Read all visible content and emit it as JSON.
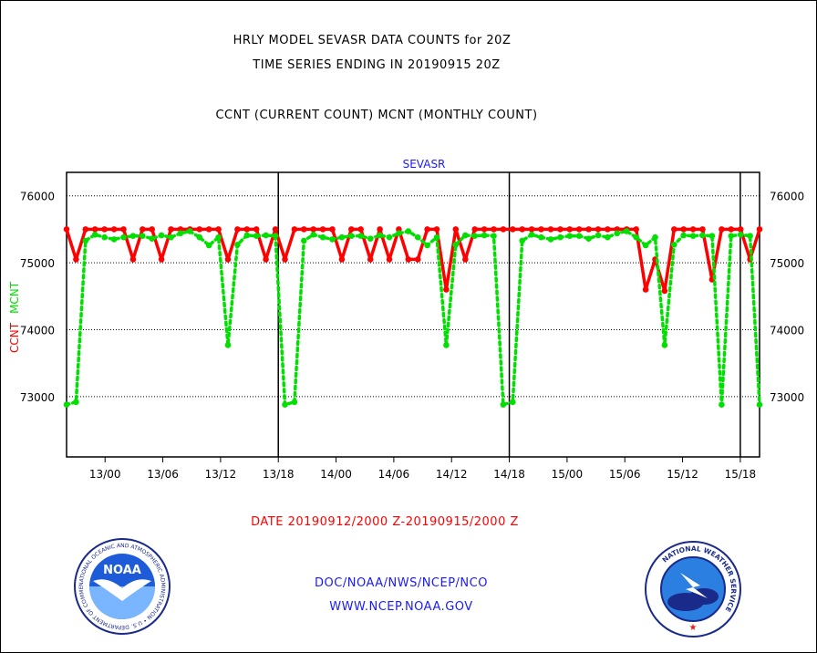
{
  "title_line1": "HRLY MODEL SEVASR DATA COUNTS for 20Z",
  "title_line2": "TIME SERIES ENDING IN 20190915 20Z",
  "subtitle": "CCNT (CURRENT COUNT) MCNT (MONTHLY COUNT)",
  "date_range": "DATE 20190912/2000 Z-20190915/2000 Z",
  "footer_org": "DOC/NOAA/NWS/NCEP/NCO",
  "footer_url": "WWW.NCEP.NOAA.GOV",
  "colors": {
    "ccnt": "#ff0000",
    "mcnt": "#00e000",
    "text_blue": "#1a1aff"
  },
  "logos": {
    "noaa_text": "NOAA",
    "noaa_ring": "NATIONAL OCEANIC AND ATMOSPHERIC ADMINISTRATION • U.S. DEPARTMENT OF COMMERCE •",
    "nws_ring": "NATIONAL WEATHER SERVICE"
  },
  "chart_data": {
    "type": "line",
    "title": "SEVASR",
    "ylabel_ccnt": "CCNT",
    "ylabel_mcnt": "MCNT",
    "ylim": [
      72100,
      76350
    ],
    "yticks": [
      73000,
      74000,
      75000,
      76000
    ],
    "ytick_labels": [
      "73000",
      "74000",
      "75000",
      "76000"
    ],
    "x_hours_range": [
      0,
      72
    ],
    "xtick_hours": [
      4,
      10,
      16,
      22,
      28,
      34,
      40,
      46,
      52,
      58,
      64,
      70
    ],
    "xtick_labels": [
      "13/00",
      "13/06",
      "13/12",
      "13/18",
      "14/00",
      "14/06",
      "14/12",
      "14/18",
      "15/00",
      "15/06",
      "15/12",
      "15/18"
    ],
    "day_boundaries": [
      22,
      46,
      70
    ],
    "grid": true,
    "series": [
      {
        "name": "CCNT",
        "color": "#ff0000",
        "style": "solid",
        "values": [
          75500,
          75050,
          75500,
          75500,
          75500,
          75500,
          75500,
          75050,
          75500,
          75500,
          75050,
          75500,
          75500,
          75500,
          75500,
          75500,
          75500,
          75050,
          75500,
          75500,
          75500,
          75050,
          75500,
          75050,
          75500,
          75500,
          75500,
          75500,
          75500,
          75050,
          75500,
          75500,
          75050,
          75500,
          75050,
          75500,
          75050,
          75050,
          75500,
          75500,
          74600,
          75500,
          75050,
          75500,
          75500,
          75500,
          75500,
          75500,
          75500,
          75500,
          75500,
          75500,
          75500,
          75500,
          75500,
          75500,
          75500,
          75500,
          75500,
          75500,
          75500,
          74600,
          75050,
          74580,
          75500,
          75500,
          75500,
          75500,
          74750,
          75500,
          75500,
          75500,
          75050,
          75500
        ]
      },
      {
        "name": "MCNT",
        "color": "#00e000",
        "style": "dotted",
        "values": [
          72880,
          72920,
          75330,
          75420,
          75380,
          75350,
          75380,
          75400,
          75400,
          75360,
          75410,
          75380,
          75440,
          75470,
          75380,
          75260,
          75380,
          73770,
          75270,
          75410,
          75400,
          75410,
          75400,
          72880,
          72920,
          75330,
          75420,
          75380,
          75350,
          75380,
          75400,
          75400,
          75360,
          75410,
          75380,
          75440,
          75470,
          75380,
          75260,
          75380,
          73770,
          75270,
          75410,
          75400,
          75410,
          75400,
          72880,
          72920,
          75330,
          75420,
          75380,
          75350,
          75380,
          75400,
          75400,
          75360,
          75410,
          75380,
          75440,
          75470,
          75380,
          75260,
          75380,
          73770,
          75270,
          75410,
          75400,
          75410,
          75400,
          72880,
          75400,
          75420,
          75400,
          72880
        ]
      }
    ]
  }
}
